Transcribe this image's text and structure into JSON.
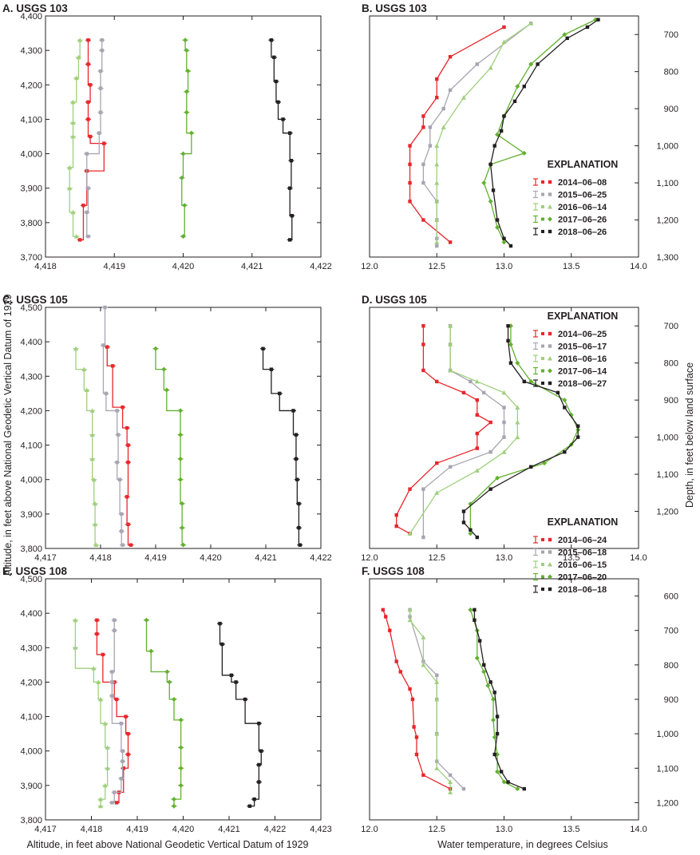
{
  "colors": {
    "2014": "#e8262b",
    "2015": "#a7a5b0",
    "2016": "#9fcf7d",
    "2017": "#62b12f",
    "2018": "#231f20",
    "axis": "#231f20"
  },
  "labels": {
    "left_ylabel": "Altitude, in feet above National Geodetic Vertical Datum of 1929",
    "left_xlabel": "Altitude, in feet above National Geodetic Vertical Datum of 1929",
    "right_ylabel": "Depth, in feet below land surface",
    "right_xlabel": "Water temperature, in degrees Celsius",
    "explanation": "EXPLANATION"
  },
  "chart_data": [
    {
      "id": "A",
      "type": "scatter",
      "title": "A. USGS 103",
      "xlim": [
        4418,
        4422
      ],
      "xticks": [
        "4,418",
        "4,419",
        "4,420",
        "4,421",
        "4,422"
      ],
      "ylim": [
        3700,
        4400
      ],
      "yticks": [
        "3,700",
        "3,800",
        "3,900",
        "4,000",
        "4,100",
        "4,200",
        "4,300",
        "4,400"
      ],
      "series": [
        {
          "name": "2014",
          "x": [
            4418.62,
            4418.62,
            4418.65,
            4418.62,
            4418.62,
            4418.65,
            4418.85,
            4418.6,
            4418.55,
            4418.5
          ],
          "y": [
            4330,
            4260,
            4200,
            4150,
            4100,
            4050,
            4030,
            3950,
            3850,
            3750
          ]
        },
        {
          "name": "2015",
          "x": [
            4418.82,
            4418.82,
            4418.8,
            4418.8,
            4418.8,
            4418.78,
            4418.6,
            4418.62,
            4418.6,
            4418.62
          ],
          "y": [
            4330,
            4300,
            4240,
            4190,
            4120,
            4060,
            4000,
            3900,
            3830,
            3760
          ]
        },
        {
          "name": "2016",
          "x": [
            4418.5,
            4418.48,
            4418.45,
            4418.4,
            4418.4,
            4418.4,
            4418.35,
            4418.35,
            4418.4,
            4418.45
          ],
          "y": [
            4330,
            4280,
            4220,
            4150,
            4090,
            4050,
            3960,
            3900,
            3830,
            3760
          ]
        },
        {
          "name": "2017",
          "x": [
            4420.03,
            4420.05,
            4420.07,
            4420.05,
            4420.05,
            4420.12,
            4420.0,
            4419.98,
            4420.02,
            4420.0
          ],
          "y": [
            4330,
            4300,
            4240,
            4180,
            4120,
            4060,
            4000,
            3930,
            3850,
            3760
          ]
        },
        {
          "name": "2018",
          "x": [
            4421.28,
            4421.32,
            4421.35,
            4421.38,
            4421.45,
            4421.55,
            4421.57,
            4421.55,
            4421.58,
            4421.55
          ],
          "y": [
            4330,
            4280,
            4210,
            4150,
            4100,
            4060,
            3980,
            3900,
            3820,
            3750
          ]
        }
      ]
    },
    {
      "id": "B",
      "type": "line",
      "title": "B. USGS 103",
      "xlim": [
        12.0,
        14.0
      ],
      "xticks": [
        "12.0",
        "12.5",
        "13.0",
        "13.5",
        "14.0"
      ],
      "ylim": [
        650,
        1300
      ],
      "yticks": [
        "700",
        "800",
        "900",
        "1,000",
        "1,100",
        "1,200",
        "1,300"
      ],
      "explanation": [
        "2014–06–08",
        "2015–06–25",
        "2016–06–14",
        "2017–06–26",
        "2018–06–26"
      ],
      "series": [
        {
          "name": "2014",
          "x": [
            13.0,
            12.6,
            12.5,
            12.5,
            12.4,
            12.4,
            12.3,
            12.3,
            12.3,
            12.3,
            12.4,
            12.6
          ],
          "y": [
            680,
            760,
            820,
            870,
            920,
            950,
            1000,
            1050,
            1100,
            1150,
            1200,
            1260
          ]
        },
        {
          "name": "2015",
          "x": [
            13.2,
            12.8,
            12.6,
            12.55,
            12.45,
            12.45,
            12.4,
            12.4,
            12.5,
            12.5,
            12.5,
            12.5
          ],
          "y": [
            670,
            780,
            850,
            900,
            950,
            1000,
            1050,
            1100,
            1150,
            1200,
            1250,
            1270
          ]
        },
        {
          "name": "2016",
          "x": [
            13.2,
            13.0,
            12.9,
            12.7,
            12.55,
            12.5,
            12.5,
            12.5,
            12.5,
            12.5,
            12.5
          ],
          "y": [
            670,
            720,
            790,
            870,
            950,
            1000,
            1050,
            1100,
            1150,
            1200,
            1260
          ]
        },
        {
          "name": "2017",
          "x": [
            13.68,
            13.45,
            13.2,
            13.1,
            13.0,
            12.95,
            13.15,
            12.9,
            12.85,
            12.9,
            12.95,
            13.0
          ],
          "y": [
            660,
            700,
            780,
            840,
            920,
            970,
            1020,
            1050,
            1100,
            1150,
            1220,
            1260
          ]
        },
        {
          "name": "2018",
          "x": [
            13.7,
            13.62,
            13.47,
            13.25,
            13.15,
            13.08,
            13.0,
            12.98,
            12.93,
            12.9,
            12.92,
            12.95,
            13.0,
            13.05
          ],
          "y": [
            660,
            680,
            710,
            780,
            840,
            880,
            920,
            960,
            1000,
            1050,
            1120,
            1200,
            1250,
            1270
          ]
        }
      ]
    },
    {
      "id": "C",
      "type": "scatter",
      "title": "C. USGS 105",
      "xlim": [
        4417,
        4422
      ],
      "xticks": [
        "4,417",
        "4,418",
        "4,419",
        "4,420",
        "4,421",
        "4,422"
      ],
      "ylim": [
        3800,
        4500
      ],
      "yticks": [
        "3,800",
        "3,900",
        "4,000",
        "4,100",
        "4,200",
        "4,300",
        "4,400",
        "4,500"
      ],
      "series": [
        {
          "name": "2014",
          "x": [
            4418.12,
            4418.22,
            4418.4,
            4418.48,
            4418.5,
            4418.5,
            4418.48,
            4418.5,
            4418.55
          ],
          "y": [
            4385,
            4330,
            4210,
            4150,
            4100,
            4050,
            3950,
            3870,
            3810
          ]
        },
        {
          "name": "2015",
          "x": [
            4418.08,
            4418.05,
            4418.1,
            4418.3,
            4418.32,
            4418.3,
            4418.35,
            4418.38,
            4418.38,
            4418.4
          ],
          "y": [
            4500,
            4390,
            4250,
            4200,
            4130,
            4050,
            4000,
            3900,
            3850,
            3810
          ]
        },
        {
          "name": "2016",
          "x": [
            4417.55,
            4417.7,
            4417.75,
            4417.85,
            4417.85,
            4417.85,
            4417.88,
            4417.9,
            4417.9,
            4417.92
          ],
          "y": [
            4380,
            4320,
            4260,
            4200,
            4130,
            4060,
            4000,
            3930,
            3870,
            3810
          ]
        },
        {
          "name": "2017",
          "x": [
            4419.0,
            4419.15,
            4419.2,
            4419.45,
            4419.45,
            4419.45,
            4419.45,
            4419.48,
            4419.48,
            4419.5
          ],
          "y": [
            4380,
            4320,
            4260,
            4200,
            4130,
            4060,
            4000,
            3930,
            3860,
            3810
          ]
        },
        {
          "name": "2018",
          "x": [
            4420.95,
            4421.1,
            4421.25,
            4421.5,
            4421.55,
            4421.55,
            4421.57,
            4421.6,
            4421.6,
            4421.62
          ],
          "y": [
            4380,
            4320,
            4250,
            4200,
            4130,
            4060,
            4000,
            3930,
            3860,
            3810
          ]
        }
      ]
    },
    {
      "id": "D",
      "type": "line",
      "title": "D. USGS 105",
      "xlim": [
        12.0,
        14.0
      ],
      "xticks": [
        "12.0",
        "12.5",
        "13.0",
        "13.5",
        "14.0"
      ],
      "ylim": [
        650,
        1300
      ],
      "yticks": [
        "700",
        "800",
        "900",
        "1,000",
        "1,100",
        "1,200"
      ],
      "explanation": [
        "2014–06–25",
        "2015–06–17",
        "2016–06–16",
        "2017–06–14",
        "2018–06–27"
      ],
      "series": [
        {
          "name": "2014",
          "x": [
            12.4,
            12.4,
            12.4,
            12.5,
            12.7,
            12.8,
            12.8,
            12.9,
            12.8,
            12.8,
            12.5,
            12.3,
            12.2,
            12.2,
            12.3
          ],
          "y": [
            700,
            750,
            820,
            850,
            880,
            900,
            940,
            960,
            990,
            1030,
            1070,
            1140,
            1210,
            1240,
            1260
          ]
        },
        {
          "name": "2015",
          "x": [
            12.6,
            12.6,
            12.6,
            12.75,
            12.85,
            13.0,
            13.0,
            13.0,
            12.9,
            12.6,
            12.4,
            12.4
          ],
          "y": [
            700,
            750,
            820,
            850,
            880,
            920,
            960,
            1000,
            1040,
            1080,
            1140,
            1270
          ]
        },
        {
          "name": "2016",
          "x": [
            12.6,
            12.6,
            12.6,
            12.8,
            13.0,
            13.1,
            13.1,
            13.1,
            13.0,
            12.8,
            12.5,
            12.3
          ],
          "y": [
            700,
            750,
            820,
            850,
            880,
            920,
            960,
            1000,
            1040,
            1090,
            1150,
            1260
          ]
        },
        {
          "name": "2017",
          "x": [
            13.05,
            13.05,
            13.1,
            13.2,
            13.45,
            13.5,
            13.55,
            13.5,
            13.3,
            12.95,
            12.75,
            12.75
          ],
          "y": [
            700,
            750,
            800,
            850,
            900,
            940,
            980,
            1020,
            1070,
            1110,
            1180,
            1260
          ]
        },
        {
          "name": "2018",
          "x": [
            13.03,
            13.03,
            13.05,
            13.15,
            13.4,
            13.45,
            13.55,
            13.55,
            13.45,
            13.2,
            12.9,
            12.7,
            12.7,
            12.75,
            12.8
          ],
          "y": [
            700,
            740,
            800,
            850,
            880,
            920,
            970,
            1000,
            1040,
            1080,
            1140,
            1200,
            1230,
            1250,
            1270
          ]
        }
      ]
    },
    {
      "id": "E",
      "type": "scatter",
      "title": "E. USGS 108",
      "xlim": [
        4417,
        4423
      ],
      "xticks": [
        "4,417",
        "4,418",
        "4,419",
        "4,420",
        "4,421",
        "4,422",
        "4,423"
      ],
      "ylim": [
        3800,
        4500
      ],
      "yticks": [
        "3,800",
        "3,900",
        "4,000",
        "4,100",
        "4,200",
        "4,300",
        "4,400",
        "4,500"
      ],
      "series": [
        {
          "name": "2014",
          "x": [
            4418.12,
            4418.12,
            4418.25,
            4418.5,
            4418.55,
            4418.75,
            4418.8,
            4418.8,
            4418.7,
            4418.6,
            4418.55
          ],
          "y": [
            4380,
            4340,
            4280,
            4200,
            4150,
            4100,
            4050,
            3990,
            3950,
            3880,
            3850
          ]
        },
        {
          "name": "2015",
          "x": [
            4418.5,
            4418.5,
            4418.45,
            4418.45,
            4418.45,
            4418.65,
            4418.68,
            4418.68,
            4418.65,
            4418.5,
            4418.45
          ],
          "y": [
            4380,
            4350,
            4230,
            4200,
            4160,
            4080,
            4000,
            3970,
            3920,
            3880,
            3850
          ]
        },
        {
          "name": "2016",
          "x": [
            4417.65,
            4417.65,
            4418.05,
            4418.15,
            4418.2,
            4418.3,
            4418.35,
            4418.35,
            4418.3,
            4418.2,
            4418.2
          ],
          "y": [
            4380,
            4300,
            4240,
            4200,
            4150,
            4080,
            4010,
            3950,
            3900,
            3860,
            3840
          ]
        },
        {
          "name": "2017",
          "x": [
            4419.2,
            4419.3,
            4419.65,
            4419.7,
            4419.8,
            4419.95,
            4419.95,
            4419.95,
            4419.95,
            4419.8,
            4419.8
          ],
          "y": [
            4380,
            4290,
            4230,
            4200,
            4150,
            4090,
            4010,
            3950,
            3900,
            3860,
            3840
          ]
        },
        {
          "name": "2018",
          "x": [
            4420.8,
            4420.85,
            4421.05,
            4421.15,
            4421.35,
            4421.65,
            4421.7,
            4421.65,
            4421.65,
            4421.55,
            4421.45
          ],
          "y": [
            4370,
            4310,
            4220,
            4200,
            4150,
            4080,
            4000,
            3960,
            3910,
            3860,
            3840
          ]
        }
      ]
    },
    {
      "id": "F",
      "type": "line",
      "title": "F. USGS 108",
      "xlim": [
        12.0,
        14.0
      ],
      "xticks": [
        "12.0",
        "12.5",
        "13.0",
        "13.5",
        "14.0"
      ],
      "ylim": [
        550,
        1250
      ],
      "yticks": [
        "600",
        "700",
        "800",
        "900",
        "1,000",
        "1,100",
        "1,200"
      ],
      "explanation": [
        "2014–06–24",
        "2015–06–18",
        "2016–06–15",
        "2017–06–20",
        "2018–06–18"
      ],
      "series": [
        {
          "name": "2014",
          "x": [
            12.1,
            12.12,
            12.15,
            12.2,
            12.23,
            12.3,
            12.32,
            12.33,
            12.35,
            12.35,
            12.4,
            12.6
          ],
          "y": [
            640,
            660,
            700,
            790,
            820,
            870,
            900,
            980,
            1010,
            1060,
            1120,
            1160
          ]
        },
        {
          "name": "2015",
          "x": [
            12.3,
            12.3,
            12.4,
            12.5,
            12.5,
            12.5,
            12.5,
            12.6,
            12.7
          ],
          "y": [
            640,
            660,
            790,
            830,
            900,
            1000,
            1080,
            1120,
            1160
          ]
        },
        {
          "name": "2016",
          "x": [
            12.3,
            12.3,
            12.4,
            12.4,
            12.5,
            12.5,
            12.5,
            12.5,
            12.6,
            12.6
          ],
          "y": [
            640,
            670,
            720,
            800,
            850,
            900,
            1000,
            1100,
            1140,
            1170
          ]
        },
        {
          "name": "2017",
          "x": [
            12.75,
            12.8,
            12.8,
            12.85,
            12.88,
            12.92,
            12.92,
            12.93,
            12.95,
            12.95,
            13.0,
            13.1
          ],
          "y": [
            640,
            700,
            780,
            820,
            860,
            900,
            960,
            1010,
            1060,
            1110,
            1140,
            1160
          ]
        },
        {
          "name": "2018",
          "x": [
            12.78,
            12.78,
            12.82,
            12.85,
            12.9,
            12.93,
            12.95,
            12.95,
            12.93,
            12.98,
            13.03,
            13.15
          ],
          "y": [
            640,
            670,
            730,
            800,
            850,
            880,
            950,
            1000,
            1060,
            1110,
            1140,
            1160
          ]
        }
      ]
    }
  ]
}
